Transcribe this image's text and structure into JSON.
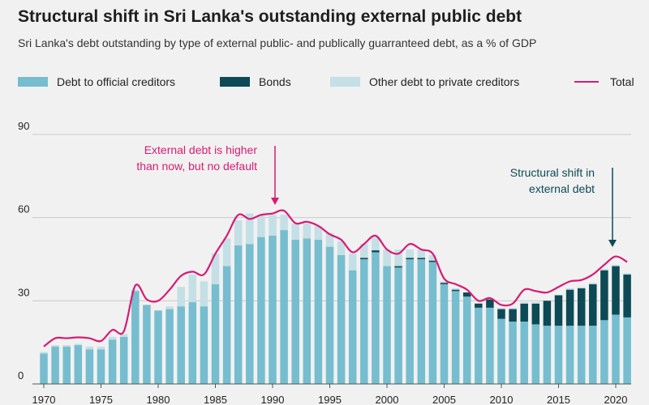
{
  "title": "Structural shift in Sri Lanka's outstanding external public debt",
  "subtitle": "Sri Lanka's debt outstanding by type of external public- and publically guarranteed debt, as a % of GDP",
  "colors": {
    "official": "#76bdcf",
    "bonds": "#0d4a56",
    "other_private": "#c4dfe6",
    "total": "#d81b72",
    "annotation_debt": "#d81b72",
    "annotation_shift": "#0d4a56"
  },
  "legend": [
    {
      "label": "Debt to official creditors",
      "key": "official"
    },
    {
      "label": "Bonds",
      "key": "bonds"
    },
    {
      "label": "Other debt to private creditors",
      "key": "other_private"
    },
    {
      "label": "Total",
      "key": "total"
    }
  ],
  "annotations": [
    {
      "lines": [
        "External debt is higher",
        "than now, but no default"
      ],
      "year": 1990
    },
    {
      "lines": [
        "Structural shift in",
        "external debt"
      ],
      "year": 2020
    }
  ],
  "chart_data": {
    "type": "bar",
    "stacked": true,
    "x": [
      1970,
      1971,
      1972,
      1973,
      1974,
      1975,
      1976,
      1977,
      1978,
      1979,
      1980,
      1981,
      1982,
      1983,
      1984,
      1985,
      1986,
      1987,
      1988,
      1989,
      1990,
      1991,
      1992,
      1993,
      1994,
      1995,
      1996,
      1997,
      1998,
      1999,
      2000,
      2001,
      2002,
      2003,
      2004,
      2005,
      2006,
      2007,
      2008,
      2009,
      2010,
      2011,
      2012,
      2013,
      2014,
      2015,
      2016,
      2017,
      2018,
      2019,
      2020,
      2021
    ],
    "series": [
      {
        "name": "Debt to official creditors",
        "key": "official",
        "values": [
          11,
          13.5,
          13.5,
          14,
          12.5,
          12.5,
          16,
          17,
          33.5,
          28.5,
          26.5,
          27,
          28,
          29.5,
          28,
          36,
          42.5,
          50,
          50.5,
          53,
          53.5,
          55.5,
          52,
          52.5,
          52,
          49.5,
          46.5,
          41,
          45,
          47.5,
          42.5,
          42,
          45,
          45,
          44,
          36,
          33.5,
          31.5,
          27.5,
          27.5,
          23.5,
          22.5,
          22.5,
          21.5,
          21,
          21,
          21,
          21,
          21,
          23,
          25,
          24
        ]
      },
      {
        "name": "Bonds",
        "key": "bonds",
        "values": [
          0,
          0,
          0,
          0,
          0,
          0,
          0,
          0,
          0,
          0,
          0,
          0,
          0,
          0,
          0,
          0,
          0,
          0,
          0,
          0,
          0,
          0,
          0,
          0,
          0,
          0,
          0,
          0,
          0.5,
          0.7,
          0,
          0.5,
          0.5,
          0.5,
          0.5,
          0.5,
          0.5,
          1.5,
          1.5,
          3,
          3.5,
          4.5,
          6.5,
          7.5,
          9,
          11,
          13,
          13.5,
          15,
          18,
          17.5,
          15.5
        ]
      },
      {
        "name": "Other debt to private creditors",
        "key": "other_private",
        "values": [
          0.5,
          0.5,
          0.5,
          0.5,
          1,
          1,
          1,
          1,
          0.5,
          0,
          0,
          1,
          7,
          10,
          9,
          11,
          10,
          9,
          11,
          8,
          7.5,
          5.5,
          6,
          5.5,
          5,
          5,
          5,
          6,
          5,
          5,
          6,
          6,
          3,
          3,
          2,
          0.5,
          0.5,
          0,
          0,
          0.5,
          0.5,
          0.5,
          0.5,
          0.5,
          0,
          0,
          0.5,
          0.5,
          0.5,
          0.5,
          0.5,
          0.5
        ]
      }
    ],
    "total": [
      13.5,
      16.5,
      16.5,
      16.8,
      16.5,
      15.5,
      19.5,
      19,
      35.5,
      30.5,
      30,
      34,
      39,
      40.5,
      39.5,
      47,
      53.5,
      61,
      59.5,
      61,
      61.5,
      62.5,
      58,
      58.5,
      57,
      54,
      52,
      47.5,
      50.5,
      53.5,
      48.5,
      47,
      50.5,
      48.5,
      47,
      38,
      36,
      34,
      30,
      31,
      28.5,
      29,
      34,
      33.5,
      33,
      35,
      37,
      37.5,
      39.5,
      43,
      46,
      44
    ],
    "yticks": [
      0,
      30,
      60,
      90
    ],
    "ytick_labels": [
      "0",
      "30",
      "60",
      "90"
    ],
    "xticks": [
      1970,
      1975,
      1980,
      1985,
      1990,
      1995,
      2000,
      2005,
      2010,
      2015,
      2020
    ],
    "xtick_labels": [
      "1970",
      "1975",
      "1980",
      "1985",
      "1990",
      "1995",
      "2000",
      "2005",
      "2010",
      "2015",
      "2020"
    ],
    "ylim": [
      0,
      90
    ],
    "xlim": [
      1970,
      2021
    ],
    "grid": "horizontal",
    "legend_position": "top"
  }
}
